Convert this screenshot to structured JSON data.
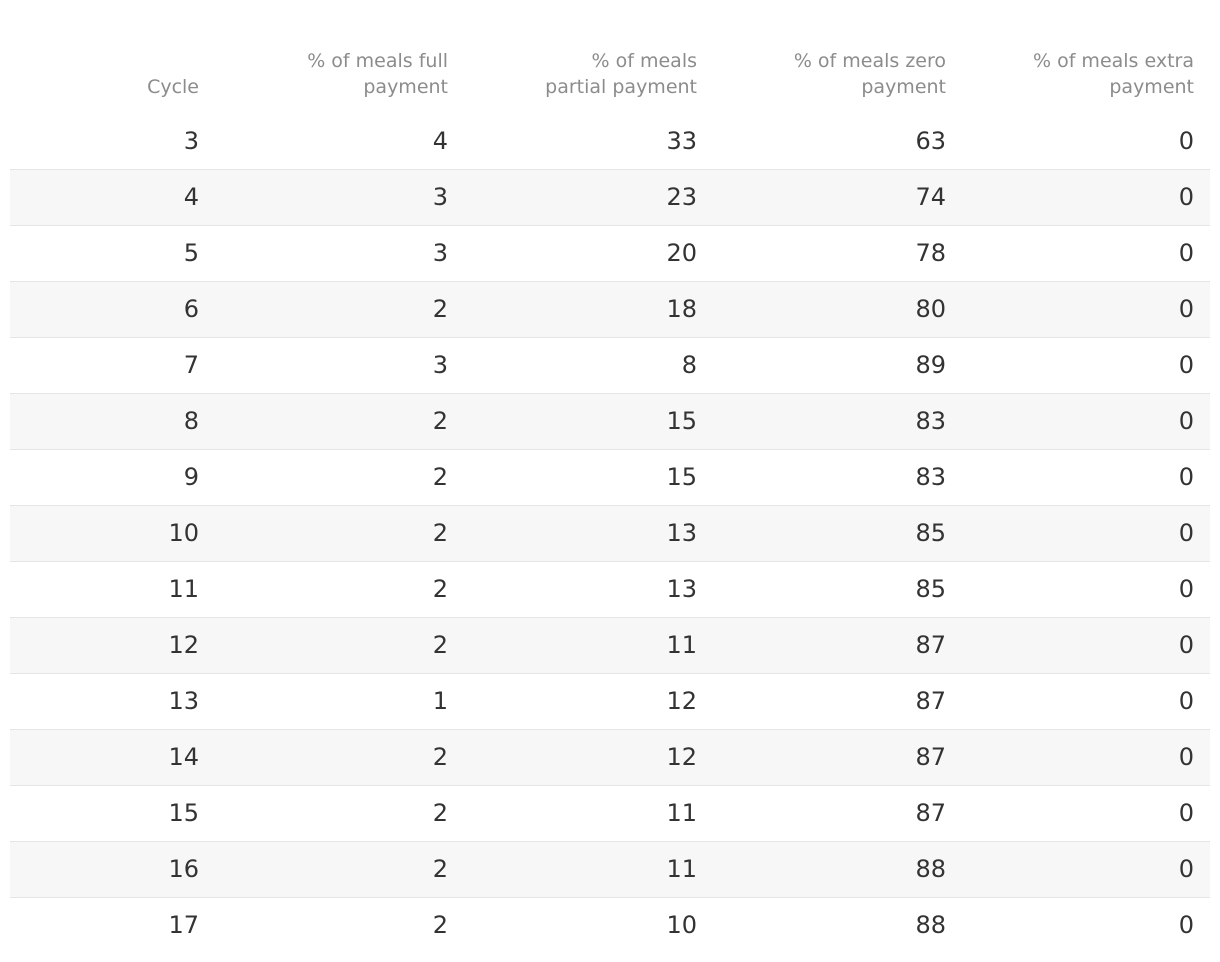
{
  "chart_data": {
    "type": "table",
    "columns": [
      "Cycle",
      "% of meals full\npayment",
      "% of meals\npartial payment",
      "% of meals zero\npayment",
      "% of meals extra\npayment"
    ],
    "rows": [
      [
        "3",
        "4",
        "33",
        "63",
        "0"
      ],
      [
        "4",
        "3",
        "23",
        "74",
        "0"
      ],
      [
        "5",
        "3",
        "20",
        "78",
        "0"
      ],
      [
        "6",
        "2",
        "18",
        "80",
        "0"
      ],
      [
        "7",
        "3",
        "8",
        "89",
        "0"
      ],
      [
        "8",
        "2",
        "15",
        "83",
        "0"
      ],
      [
        "9",
        "2",
        "15",
        "83",
        "0"
      ],
      [
        "10",
        "2",
        "13",
        "85",
        "0"
      ],
      [
        "11",
        "2",
        "13",
        "85",
        "0"
      ],
      [
        "12",
        "2",
        "11",
        "87",
        "0"
      ],
      [
        "13",
        "1",
        "12",
        "87",
        "0"
      ],
      [
        "14",
        "2",
        "12",
        "87",
        "0"
      ],
      [
        "15",
        "2",
        "11",
        "87",
        "0"
      ],
      [
        "16",
        "2",
        "11",
        "88",
        "0"
      ],
      [
        "17",
        "2",
        "10",
        "88",
        "0"
      ]
    ]
  },
  "colors": {
    "header_text": "#8c8c8c",
    "cell_text": "#333333",
    "row_stripe": "#f7f7f7",
    "row_divider": "#e6e6e6"
  }
}
